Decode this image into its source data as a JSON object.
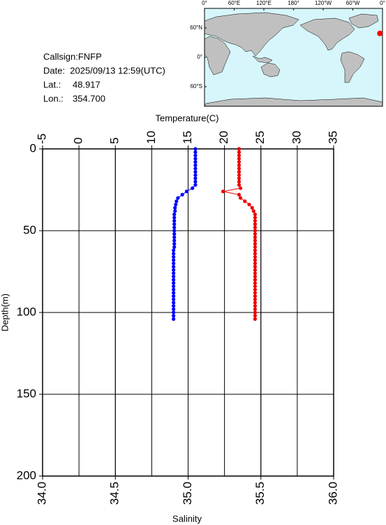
{
  "chart_data": {
    "type": "profile",
    "info": {
      "callsign": "Callsign:FNFP",
      "date": "Date:  2025/09/13 12:59(UTC)",
      "lat_label": "Lat.:",
      "lat": 48.917,
      "lon_label": "Lon.:",
      "lon": {
        "value": 354.7,
        "label": "354.700"
      }
    },
    "map": {
      "xlim": [
        0,
        360
      ],
      "ylim": [
        -100,
        100
      ],
      "marker_color": "#ff0000",
      "lon_ticks": [
        {
          "value": 0,
          "label": "0°"
        },
        {
          "value": 60,
          "label": "60°E"
        },
        {
          "value": 120,
          "label": "120°E"
        },
        {
          "value": 180,
          "label": "180°"
        },
        {
          "value": 240,
          "label": "120°W"
        },
        {
          "value": 300,
          "label": "60°W"
        },
        {
          "value": 360,
          "label": "0°"
        }
      ],
      "lat_ticks": [
        {
          "value": 60,
          "label": "60°N"
        },
        {
          "value": 0,
          "label": "0°"
        },
        {
          "value": -60,
          "label": "60°S"
        }
      ]
    },
    "x2label": "Temperature(C)",
    "xlabel": "Salinity",
    "ylabel": "Depth(m)",
    "x2lim": [
      -5,
      35
    ],
    "x2ticks": [
      -5,
      0,
      5,
      10,
      15,
      20,
      25,
      30,
      35
    ],
    "xlim": [
      34,
      36
    ],
    "xticks": [
      {
        "value": 34,
        "label": "34.0"
      },
      {
        "value": 34.5,
        "label": "34.5"
      },
      {
        "value": 35,
        "label": "35.0"
      },
      {
        "value": 35.5,
        "label": "35.5"
      },
      {
        "value": 36,
        "label": "36.0"
      }
    ],
    "ylim": [
      0,
      200
    ],
    "yticks": [
      0,
      50,
      100,
      150,
      200
    ],
    "yinvert": true,
    "grid": true,
    "depth": [
      0,
      2,
      4,
      6,
      8,
      10,
      12,
      14,
      16,
      18,
      20,
      22,
      24,
      26,
      28,
      30,
      32,
      34,
      36,
      38,
      40,
      42,
      44,
      46,
      48,
      50,
      52,
      54,
      56,
      58,
      60,
      62,
      64,
      66,
      68,
      70,
      72,
      74,
      76,
      78,
      80,
      82,
      84,
      86,
      88,
      90,
      92,
      94,
      96,
      98,
      100,
      102,
      104
    ],
    "series": [
      {
        "axis": "x2",
        "color": "#0000ff",
        "values": [
          16.0,
          16.0,
          16.0,
          16.0,
          16.0,
          16.0,
          16.0,
          16.0,
          16.0,
          16.0,
          16.0,
          16.0,
          15.6,
          14.8,
          14.2,
          13.6,
          13.4,
          13.3,
          13.2,
          13.2,
          13.1,
          13.1,
          13.1,
          13.1,
          13.1,
          13.1,
          13.1,
          13.1,
          13.1,
          13.1,
          13.1,
          13.0,
          13.0,
          13.0,
          13.0,
          13.0,
          13.0,
          13.0,
          13.0,
          13.0,
          13.0,
          13.0,
          13.0,
          13.0,
          13.0,
          13.0,
          13.0,
          13.0,
          13.0,
          13.0,
          13.0,
          13.0,
          13.0
        ]
      },
      {
        "axis": "x",
        "color": "#ee0000",
        "values": [
          35.35,
          35.35,
          35.35,
          35.35,
          35.35,
          35.35,
          35.35,
          35.35,
          35.35,
          35.35,
          35.35,
          35.35,
          35.36,
          35.24,
          35.35,
          35.36,
          35.39,
          35.42,
          35.44,
          35.45,
          35.46,
          35.46,
          35.46,
          35.46,
          35.46,
          35.46,
          35.46,
          35.46,
          35.46,
          35.46,
          35.46,
          35.46,
          35.46,
          35.46,
          35.46,
          35.46,
          35.46,
          35.46,
          35.46,
          35.46,
          35.46,
          35.46,
          35.46,
          35.46,
          35.46,
          35.46,
          35.46,
          35.46,
          35.46,
          35.46,
          35.46,
          35.46,
          35.46
        ]
      }
    ]
  }
}
